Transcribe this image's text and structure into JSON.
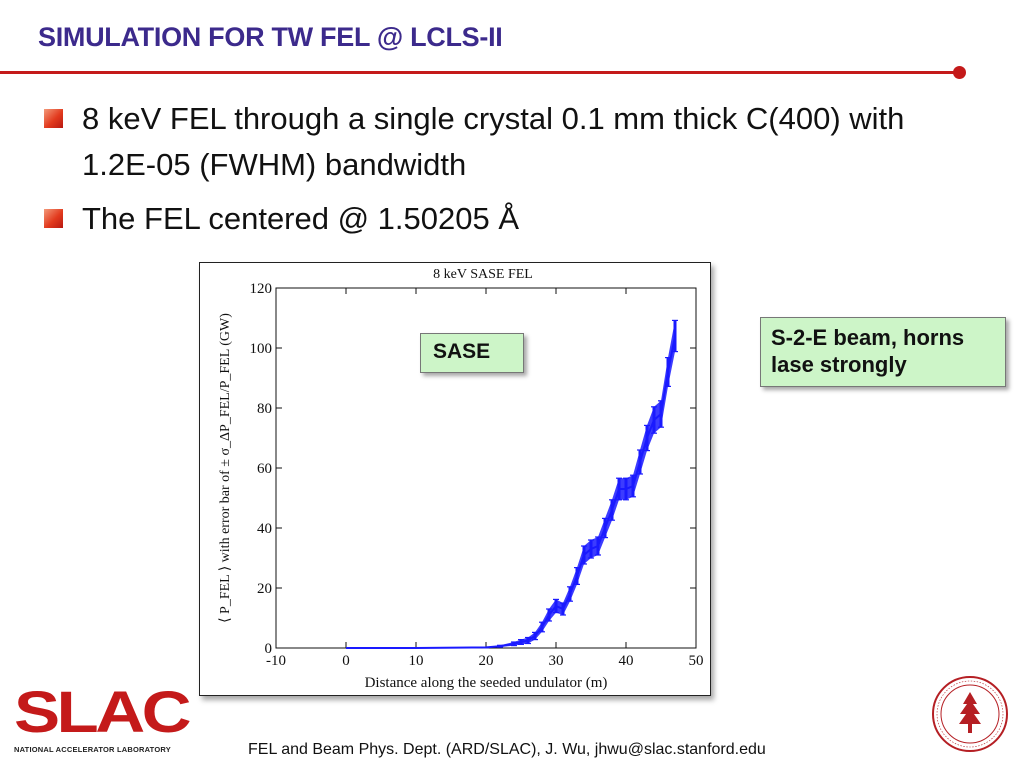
{
  "slide": {
    "title": "SIMULATION FOR TW FEL @ LCLS-II",
    "bullets": [
      "8 keV FEL through a single crystal 0.1 mm thick C(400) with 1.2E-05 (FWHM) bandwidth",
      "The FEL centered @ 1.50205 Å"
    ],
    "callouts": {
      "sase": "SASE",
      "s2e_line1": "S-2-E beam, horns",
      "s2e_line2": "lase strongly"
    },
    "footer": "FEL and Beam Phys. Dept. (ARD/SLAC), J. Wu, jhwu@slac.stanford.edu",
    "logo": {
      "name": "SLAC",
      "tagline": "NATIONAL ACCELERATOR LABORATORY"
    },
    "seal": {
      "name": "stanford-seal"
    },
    "colors": {
      "title": "#3c2a8c",
      "rule": "#c41a1a",
      "callout_bg": "#cdf5c8",
      "series": "#1a1aff"
    }
  },
  "chart_data": {
    "type": "line",
    "title": "8 keV SASE FEL",
    "xlabel": "Distance along the seeded undulator (m)",
    "ylabel": "⟨ P_FEL ⟩ with error bar of ± σ_ΔP_FEL/P_FEL (GW)",
    "xlim": [
      -10,
      50
    ],
    "ylim": [
      0,
      120
    ],
    "xticks": [
      -10,
      0,
      10,
      20,
      30,
      40,
      50
    ],
    "yticks": [
      0,
      20,
      40,
      60,
      80,
      100,
      120
    ],
    "grid": false,
    "series": [
      {
        "x": [
          0,
          10,
          20,
          22,
          24,
          25,
          26,
          27,
          28,
          29,
          30,
          31,
          32,
          33,
          34,
          35,
          36,
          37,
          38,
          39,
          40,
          41,
          42,
          43,
          44,
          45,
          46,
          47
        ],
        "y": [
          0,
          0,
          0.2,
          0.6,
          1.4,
          2,
          2.5,
          4,
          7,
          11,
          14,
          13,
          18,
          24,
          31,
          33,
          34,
          40,
          46,
          53,
          53,
          54,
          62,
          70,
          76,
          78,
          92,
          104
        ],
        "err": [
          0,
          0,
          0.1,
          0.3,
          0.6,
          0.8,
          1,
          1.2,
          1.6,
          2,
          2.2,
          2,
          2.4,
          2.8,
          3,
          3,
          3,
          3.2,
          3.4,
          3.6,
          3.6,
          3.6,
          4,
          4.2,
          4.4,
          4.4,
          4.8,
          5.2
        ]
      }
    ]
  }
}
